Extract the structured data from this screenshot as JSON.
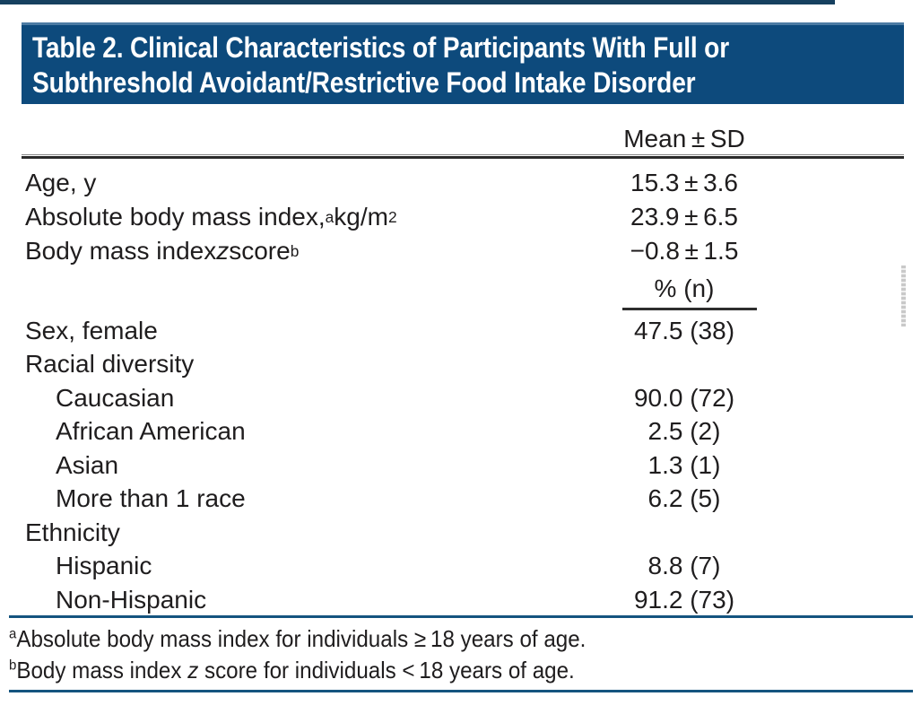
{
  "colors": {
    "banner_bg": "#0d4a7c",
    "banner_border_top": "#4c7ba3",
    "top_line": "#16405f",
    "rule_black": "#2a2a2a",
    "rule_blue": "#14547f",
    "text": "#1f1d1e",
    "title_text": "#ffffff",
    "margin_mark": "#c9c9c9"
  },
  "table": {
    "title_lines": [
      "Table 2. Clinical Characteristics of Participants With Full or",
      "Subthreshold Avoidant/Restrictive Food Intake Disorder"
    ],
    "mean_section": {
      "header": "Mean ± SD",
      "rows": [
        {
          "indent": 0,
          "label": [
            {
              "text": "Age, y"
            }
          ],
          "value": "15.3 ± 3.6"
        },
        {
          "indent": 0,
          "label": [
            {
              "text": "Absolute body mass index,"
            },
            {
              "sup": "a"
            },
            {
              "text": " kg/m"
            },
            {
              "sup": "2"
            }
          ],
          "value": "23.9 ± 6.5"
        },
        {
          "indent": 0,
          "label": [
            {
              "text": "Body mass index "
            },
            {
              "italic": "z"
            },
            {
              "text": " score"
            },
            {
              "sup": "b"
            }
          ],
          "value": "−0.8 ± 1.5"
        }
      ]
    },
    "pct_section": {
      "header": "% (n)",
      "rows": [
        {
          "indent": 0,
          "label": [
            {
              "text": "Sex, female"
            }
          ],
          "value": "47.5 (38)"
        },
        {
          "indent": 0,
          "label": [
            {
              "text": "Racial diversity"
            }
          ],
          "value": ""
        },
        {
          "indent": 1,
          "label": [
            {
              "text": "Caucasian"
            }
          ],
          "value": "90.0 (72)"
        },
        {
          "indent": 1,
          "label": [
            {
              "text": "African American"
            }
          ],
          "value": "2.5 (2)"
        },
        {
          "indent": 1,
          "label": [
            {
              "text": "Asian"
            }
          ],
          "value": "1.3 (1)"
        },
        {
          "indent": 1,
          "label": [
            {
              "text": "More than 1 race"
            }
          ],
          "value": "6.2 (5)"
        },
        {
          "indent": 0,
          "label": [
            {
              "text": "Ethnicity"
            }
          ],
          "value": ""
        },
        {
          "indent": 1,
          "label": [
            {
              "text": "Hispanic"
            }
          ],
          "value": "8.8 (7)"
        },
        {
          "indent": 1,
          "label": [
            {
              "text": "Non-Hispanic"
            }
          ],
          "value": "91.2 (73)"
        }
      ]
    },
    "footnotes": [
      {
        "sup": "a",
        "segments": [
          {
            "text": "Absolute body mass index for individuals ≥ 18 years of age."
          }
        ]
      },
      {
        "sup": "b",
        "segments": [
          {
            "text": "Body mass index "
          },
          {
            "italic": "z"
          },
          {
            "text": " score for individuals < 18 years of age."
          }
        ]
      }
    ]
  }
}
